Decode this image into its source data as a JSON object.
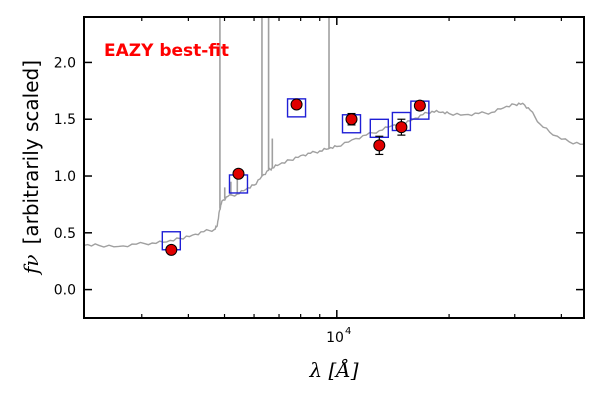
{
  "chart_data": {
    "type": "scatter",
    "annotation": "EAZY best-fit",
    "annotation_color": "#ff0000",
    "xlabel": "λ [Å]",
    "ylabel_math": "fν",
    "ylabel_rest": "[arbitrarily scaled]",
    "x_scale": "log",
    "xlim": [
      2100,
      46000
    ],
    "ylim": [
      -0.25,
      2.4
    ],
    "y_ticks": [
      0.0,
      0.5,
      1.0,
      1.5,
      2.0
    ],
    "y_tick_labels": [
      "0.0",
      "0.5",
      "1.0",
      "1.5",
      "2.0"
    ],
    "x_major_ticks": [
      10000
    ],
    "x_major_tick_label_base": "10",
    "x_major_tick_label_exp": "4",
    "x_minor_ticks": [
      3000,
      4000,
      5000,
      6000,
      7000,
      8000,
      9000,
      20000,
      30000,
      40000
    ],
    "grid": false,
    "colors": {
      "template": "#a0a0a0",
      "observed_fill": "#e00000",
      "model_box": "#1f1fd6"
    },
    "series": [
      {
        "role": "template",
        "points": [
          [
            2100,
            0.39
          ],
          [
            2300,
            0.39
          ],
          [
            2600,
            0.38
          ],
          [
            2900,
            0.4
          ],
          [
            3200,
            0.41
          ],
          [
            3500,
            0.42
          ],
          [
            3800,
            0.45
          ],
          [
            4100,
            0.48
          ],
          [
            4400,
            0.51
          ],
          [
            4700,
            0.53
          ],
          [
            4780,
            0.56
          ],
          [
            4850,
            0.7
          ],
          [
            4920,
            0.78
          ],
          [
            5100,
            0.82
          ],
          [
            5400,
            0.84
          ],
          [
            5700,
            0.88
          ],
          [
            6000,
            0.92
          ],
          [
            6300,
            1.0
          ],
          [
            6560,
            1.05
          ],
          [
            6700,
            1.07
          ],
          [
            7000,
            1.1
          ],
          [
            7500,
            1.14
          ],
          [
            8000,
            1.18
          ],
          [
            8500,
            1.2
          ],
          [
            9000,
            1.22
          ],
          [
            9500,
            1.24
          ],
          [
            10000,
            1.26
          ],
          [
            11000,
            1.32
          ],
          [
            12000,
            1.36
          ],
          [
            13000,
            1.4
          ],
          [
            14000,
            1.44
          ],
          [
            15000,
            1.46
          ],
          [
            16000,
            1.5
          ],
          [
            17000,
            1.54
          ],
          [
            18000,
            1.57
          ],
          [
            19000,
            1.56
          ],
          [
            20000,
            1.55
          ],
          [
            22000,
            1.54
          ],
          [
            24000,
            1.55
          ],
          [
            26000,
            1.56
          ],
          [
            28000,
            1.6
          ],
          [
            30000,
            1.63
          ],
          [
            31500,
            1.64
          ],
          [
            33000,
            1.58
          ],
          [
            35000,
            1.46
          ],
          [
            38000,
            1.36
          ],
          [
            42000,
            1.3
          ],
          [
            46000,
            1.28
          ]
        ],
        "emission_lines": [
          {
            "x": 4860,
            "peak": 2.4
          },
          {
            "x": 5007,
            "peak": 0.9
          },
          {
            "x": 5200,
            "peak": 0.95
          },
          {
            "x": 5410,
            "peak": 1.03
          },
          {
            "x": 6300,
            "peak": 2.4
          },
          {
            "x": 6563,
            "peak": 2.4
          },
          {
            "x": 6716,
            "peak": 1.33
          },
          {
            "x": 9530,
            "peak": 2.4
          }
        ]
      },
      {
        "role": "model_photometry",
        "x": [
          3600,
          5450,
          7800,
          10950,
          13000,
          14900,
          16700
        ],
        "y": [
          0.43,
          0.93,
          1.6,
          1.46,
          1.42,
          1.48,
          1.58
        ]
      },
      {
        "role": "observed",
        "x": [
          3600,
          5450,
          7800,
          10950,
          13000,
          14900,
          16700
        ],
        "y": [
          0.35,
          1.02,
          1.63,
          1.5,
          1.27,
          1.43,
          1.62
        ],
        "err": [
          0.01,
          0.02,
          0.02,
          0.05,
          0.08,
          0.07,
          0.04
        ]
      }
    ]
  }
}
